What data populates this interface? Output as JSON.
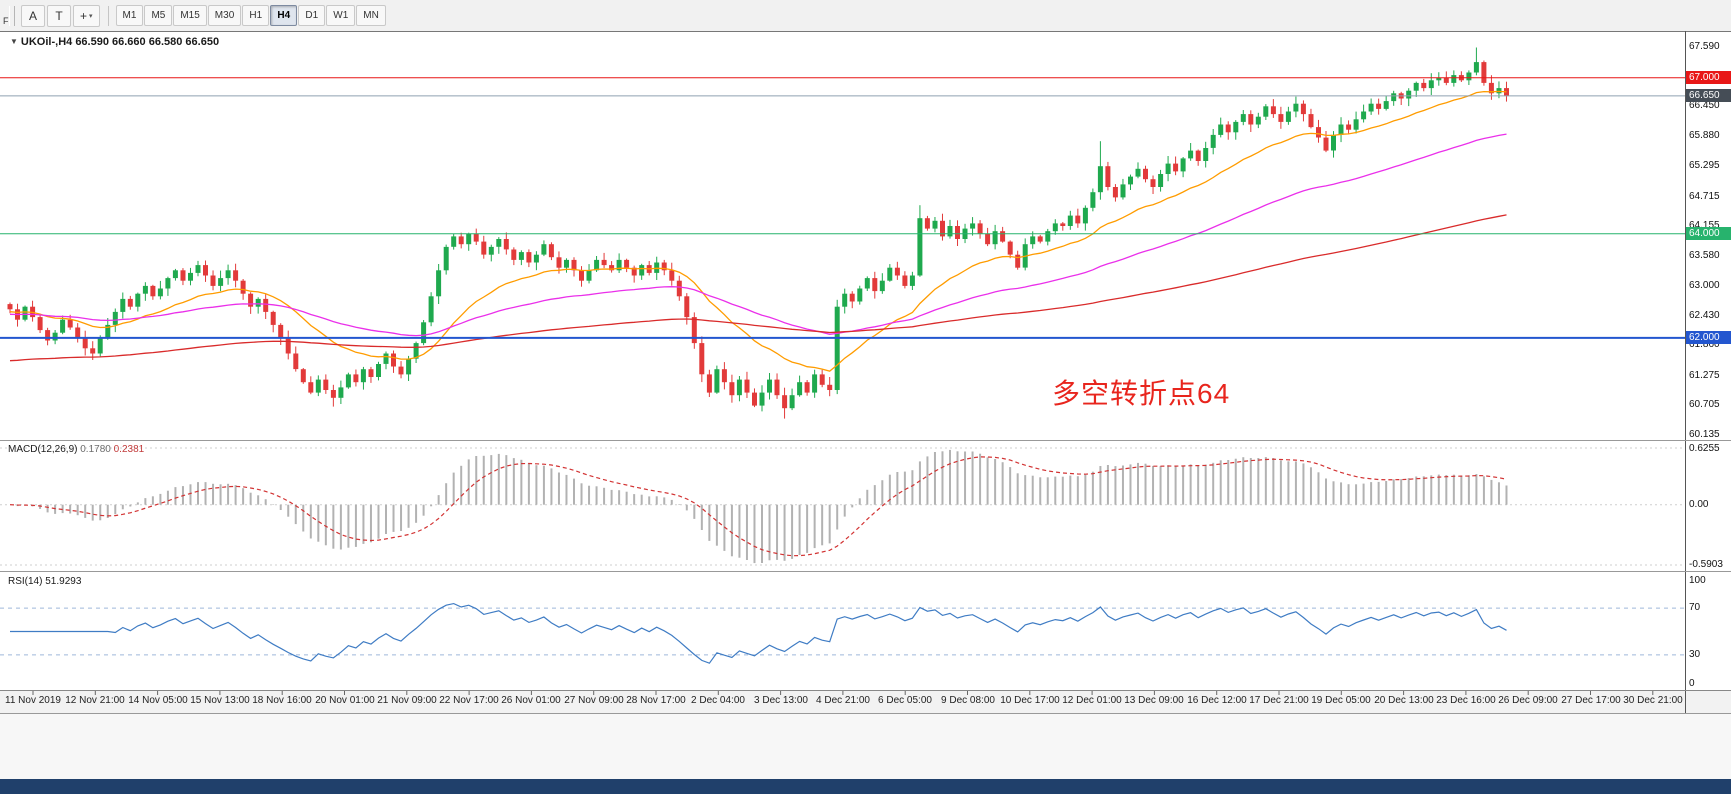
{
  "toolbar": {
    "f_label": "F",
    "tools": [
      {
        "name": "text-label-tool",
        "label": "A"
      },
      {
        "name": "text-tool",
        "label": "T"
      },
      {
        "name": "crosshair-tool",
        "label": "+",
        "caret": "▾"
      }
    ],
    "timeframes": [
      {
        "label": "M1",
        "active": false
      },
      {
        "label": "M5",
        "active": false
      },
      {
        "label": "M15",
        "active": false
      },
      {
        "label": "M30",
        "active": false
      },
      {
        "label": "H1",
        "active": false
      },
      {
        "label": "H4",
        "active": true
      },
      {
        "label": "D1",
        "active": false
      },
      {
        "label": "W1",
        "active": false
      },
      {
        "label": "MN",
        "active": false
      }
    ]
  },
  "chart": {
    "marker": "▼",
    "title": "UKOil-,H4 66.590 66.660 66.580 66.650",
    "symbol": "UKOil-",
    "period": "H4",
    "ohlc": {
      "open": "66.590",
      "high": "66.660",
      "low": "66.580",
      "close": "66.650"
    },
    "annotation": {
      "text": "多空转折点64",
      "color": "#e8251d"
    },
    "axis_ticks": [
      "67.590",
      "66.450",
      "65.880",
      "65.295",
      "64.715",
      "64.155",
      "63.580",
      "63.000",
      "62.430",
      "61.860",
      "61.275",
      "60.705",
      "60.135"
    ],
    "level_lines": [
      {
        "name": "resistance-67",
        "value": 67.0,
        "label": "67.000",
        "line_color": "#e81717",
        "tag_color": "#e81717",
        "width": 1
      },
      {
        "name": "bid-price",
        "value": 66.65,
        "label": "66.650",
        "line_color": "#8fa0b0",
        "tag_color": "#454d56",
        "width": 1
      },
      {
        "name": "support-64",
        "value": 64.0,
        "label": "64.000",
        "line_color": "#27b36d",
        "tag_color": "#27b36d",
        "width": 1
      },
      {
        "name": "support-62",
        "value": 62.0,
        "label": "62.000",
        "line_color": "#2356cf",
        "tag_color": "#2356cf",
        "width": 2
      }
    ]
  },
  "chart_data": {
    "type": "candlestick",
    "title": "UKOil- H4",
    "visible_price_range": {
      "high": 67.59,
      "low": 60.135
    },
    "up_color": "#1fa94e",
    "down_color": "#e23a3a",
    "first_open": 62.65,
    "closes": [
      62.55,
      62.35,
      62.6,
      62.4,
      62.15,
      61.95,
      62.1,
      62.35,
      62.2,
      62.0,
      61.8,
      61.7,
      62.0,
      62.25,
      62.5,
      62.75,
      62.6,
      62.85,
      63.0,
      62.8,
      62.95,
      63.15,
      63.3,
      63.1,
      63.25,
      63.4,
      63.2,
      63.0,
      63.15,
      63.3,
      63.1,
      62.85,
      62.6,
      62.75,
      62.5,
      62.25,
      62.0,
      61.7,
      61.4,
      61.15,
      60.95,
      61.2,
      61.0,
      60.85,
      61.05,
      61.3,
      61.15,
      61.4,
      61.25,
      61.5,
      61.7,
      61.45,
      61.3,
      61.6,
      61.9,
      62.3,
      62.8,
      63.3,
      63.75,
      63.95,
      63.8,
      64.0,
      63.85,
      63.6,
      63.75,
      63.9,
      63.7,
      63.5,
      63.65,
      63.45,
      63.6,
      63.8,
      63.55,
      63.35,
      63.5,
      63.3,
      63.1,
      63.3,
      63.5,
      63.4,
      63.3,
      63.5,
      63.35,
      63.2,
      63.4,
      63.25,
      63.45,
      63.3,
      63.1,
      62.8,
      62.4,
      61.9,
      61.3,
      60.95,
      61.4,
      61.15,
      60.9,
      61.2,
      60.95,
      60.7,
      60.95,
      61.2,
      60.9,
      60.65,
      60.9,
      61.15,
      60.95,
      61.3,
      61.1,
      61.0,
      62.6,
      62.85,
      62.7,
      62.95,
      63.15,
      62.9,
      63.1,
      63.35,
      63.2,
      63.0,
      63.2,
      64.3,
      64.1,
      64.25,
      63.95,
      64.15,
      63.9,
      64.1,
      64.2,
      64.0,
      63.8,
      64.05,
      63.85,
      63.6,
      63.35,
      63.8,
      63.95,
      63.85,
      64.05,
      64.2,
      64.15,
      64.35,
      64.2,
      64.5,
      64.8,
      65.3,
      64.9,
      64.7,
      64.95,
      65.1,
      65.25,
      65.05,
      64.9,
      65.15,
      65.35,
      65.2,
      65.45,
      65.6,
      65.4,
      65.65,
      65.9,
      66.1,
      65.95,
      66.15,
      66.3,
      66.1,
      66.25,
      66.45,
      66.3,
      66.15,
      66.35,
      66.5,
      66.3,
      66.05,
      65.85,
      65.6,
      65.9,
      66.1,
      66.0,
      66.2,
      66.35,
      66.5,
      66.4,
      66.55,
      66.7,
      66.6,
      66.75,
      66.9,
      66.8,
      66.95,
      67.0,
      66.9,
      67.05,
      66.95,
      67.1,
      67.3,
      66.9,
      66.7,
      66.8,
      66.65
    ],
    "wick_extremes": [
      {
        "index": 43,
        "low": 60.68
      },
      {
        "index": 103,
        "low": 60.45
      },
      {
        "index": 121,
        "high": 64.55
      },
      {
        "index": 145,
        "high": 65.78
      },
      {
        "index": 195,
        "high": 67.58
      }
    ],
    "ma_lines": [
      {
        "name": "fast",
        "period": 20,
        "start": 62.5,
        "color": "#ff9c00"
      },
      {
        "name": "medium",
        "period": 60,
        "start": 62.45,
        "color": "#ea30ea"
      },
      {
        "name": "slow",
        "period": 170,
        "start": 61.55,
        "color": "#d92b2b"
      }
    ],
    "x_labels": [
      "11 Nov 2019",
      "12 Nov 21:00",
      "14 Nov 05:00",
      "15 Nov 13:00",
      "18 Nov 16:00",
      "20 Nov 01:00",
      "21 Nov 09:00",
      "22 Nov 17:00",
      "26 Nov 01:00",
      "27 Nov 09:00",
      "28 Nov 17:00",
      "2 Dec 04:00",
      "3 Dec 13:00",
      "4 Dec 21:00",
      "6 Dec 05:00",
      "9 Dec 08:00",
      "10 Dec 17:00",
      "12 Dec 01:00",
      "13 Dec 09:00",
      "16 Dec 12:00",
      "17 Dec 21:00",
      "19 Dec 05:00",
      "20 Dec 13:00",
      "23 Dec 16:00",
      "26 Dec 09:00",
      "27 Dec 17:00",
      "30 Dec 21:00"
    ]
  },
  "macd": {
    "label": "MACD(12,26,9)",
    "main_value": "0.1780",
    "signal_value": "0.2381",
    "axis": [
      "0.6255",
      "0.00",
      "-0.5903"
    ],
    "histogram_color": "#b2b2b2",
    "signal_color": "#d23333"
  },
  "rsi": {
    "label": "RSI(14)",
    "value": "51.9293",
    "axis": [
      "100",
      "70",
      "30",
      "0"
    ],
    "levels": [
      70,
      30
    ],
    "line_color": "#3f7cc4"
  },
  "time_axis": {
    "labels": [
      "11 Nov 2019",
      "12 Nov 21:00",
      "14 Nov 05:00",
      "15 Nov 13:00",
      "18 Nov 16:00",
      "20 Nov 01:00",
      "21 Nov 09:00",
      "22 Nov 17:00",
      "26 Nov 01:00",
      "27 Nov 09:00",
      "28 Nov 17:00",
      "2 Dec 04:00",
      "3 Dec 13:00",
      "4 Dec 21:00",
      "6 Dec 05:00",
      "9 Dec 08:00",
      "10 Dec 17:00",
      "12 Dec 01:00",
      "13 Dec 09:00",
      "16 Dec 12:00",
      "17 Dec 21:00",
      "19 Dec 05:00",
      "20 Dec 13:00",
      "23 Dec 16:00",
      "26 Dec 09:00",
      "27 Dec 17:00",
      "30 Dec 21:00"
    ]
  }
}
